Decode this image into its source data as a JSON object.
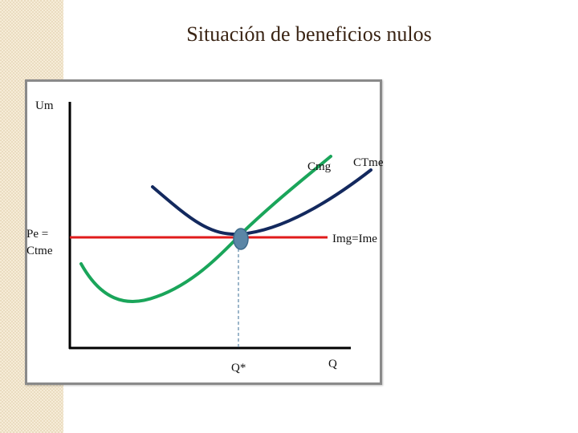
{
  "slide": {
    "title": "Situación de beneficios nulos"
  },
  "diagram": {
    "y_axis_label": "Um",
    "x_axis_label": "Q",
    "price_label_line1": "Pe =",
    "price_label_line2": "Ctme",
    "quantity_label": "Q*",
    "cmg_label": "Cmg",
    "ctme_label": "CTme",
    "img_label": "Img=Ime",
    "colors": {
      "cmg": "#1aa55a",
      "ctme": "#13295e",
      "price_line": "#e01b1b",
      "equilibrium_point": "#5b86a6",
      "axes": "#000000"
    }
  }
}
